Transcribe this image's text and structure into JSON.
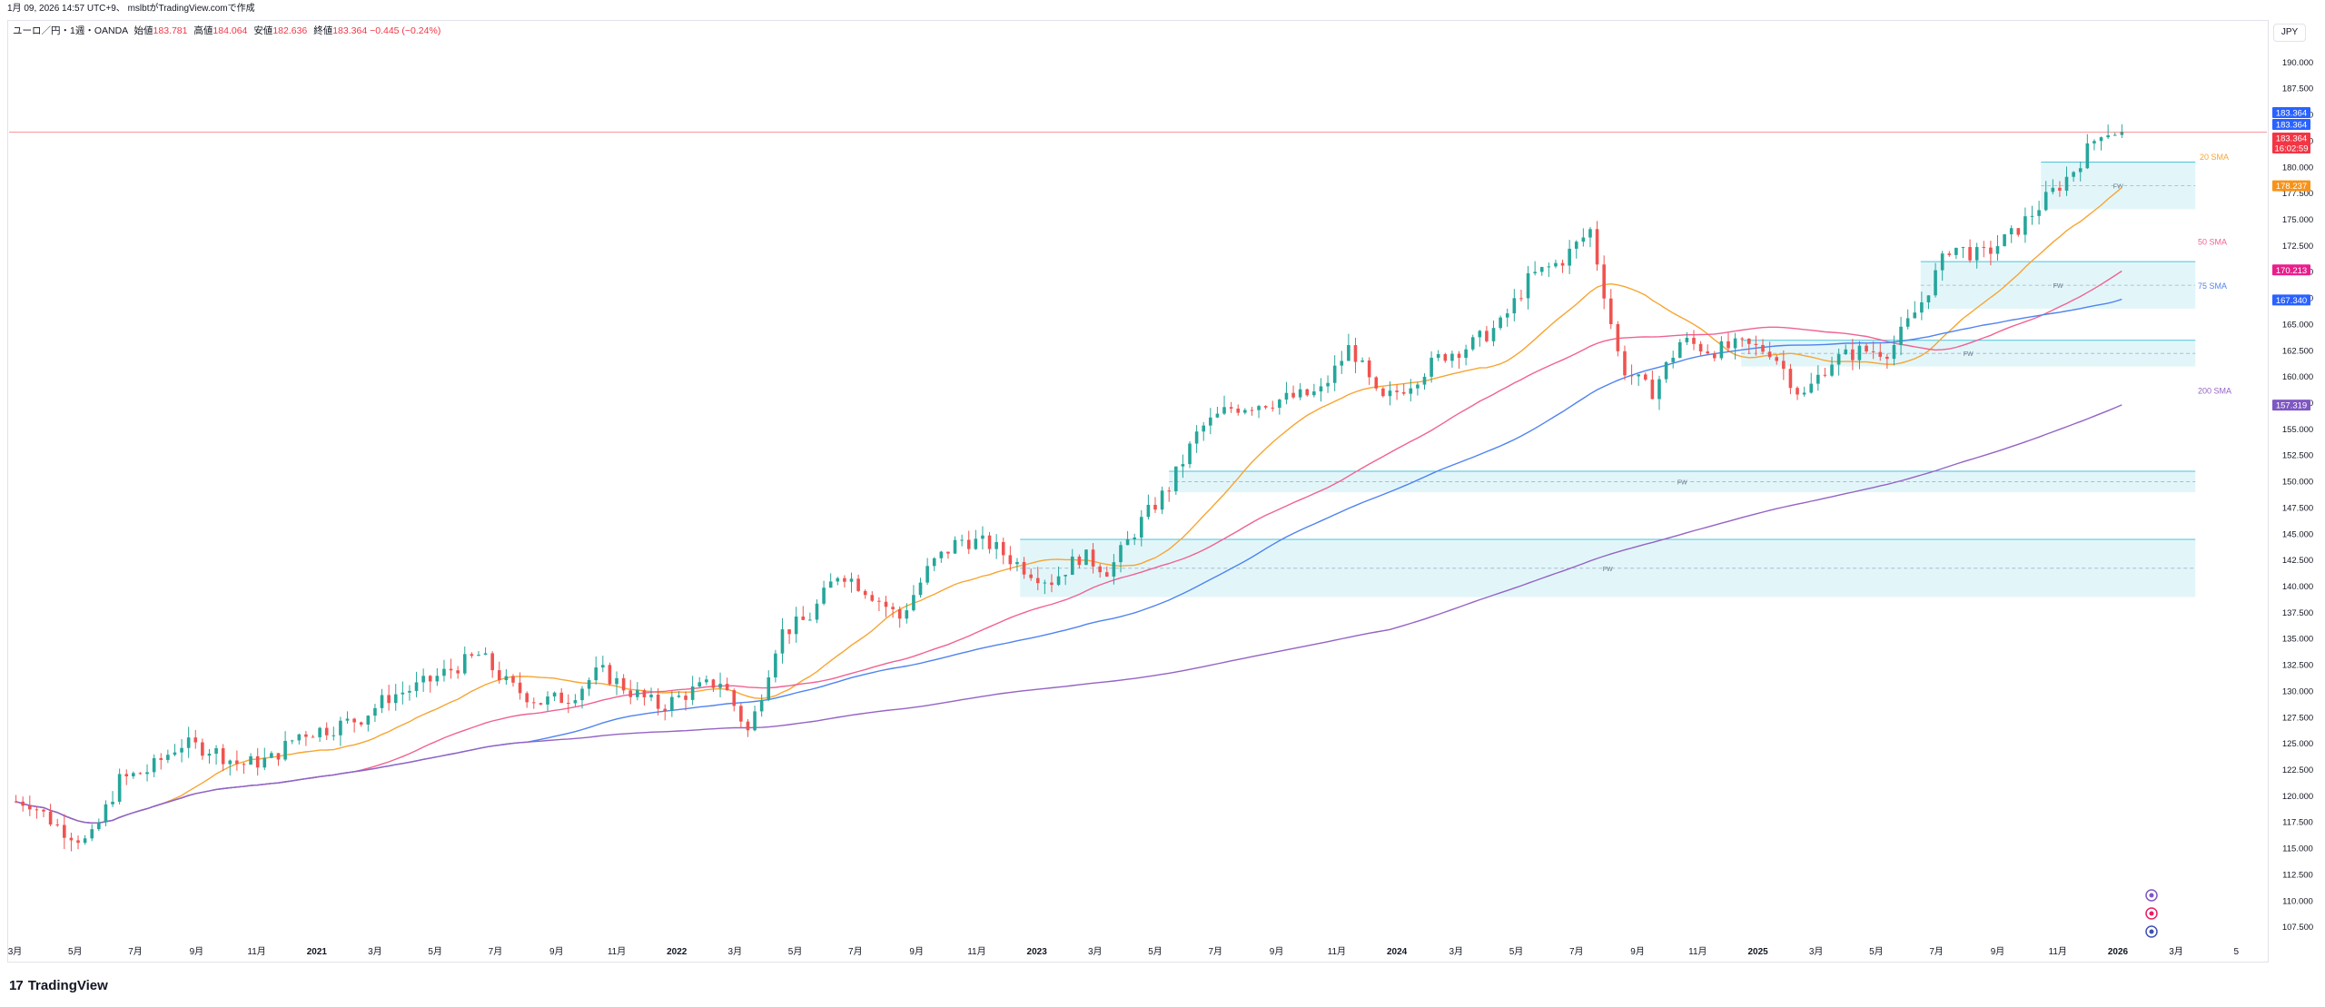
{
  "header": {
    "timestamp_line": "1月 09, 2026 14:57 UTC+9、 mslbtがTradingView.comで作成"
  },
  "legend": {
    "symbol": "ユーロ／円・1週・OANDA",
    "open_label": "始値",
    "open_value": "183.781",
    "high_label": "高値",
    "high_value": "184.064",
    "low_label": "安値",
    "low_value": "182.636",
    "close_label": "終値",
    "close_value": "183.364",
    "change": "−0.445 (−0.24%)"
  },
  "currency_button": "JPY",
  "footer": {
    "brand": "TradingView",
    "brand_mark": "17"
  },
  "colors": {
    "up": "#26a69a",
    "down": "#ef5350",
    "blue_candle": "#2962ff",
    "red_candle": "#c2185b",
    "sma20": "#f7a531",
    "sma50": "#f06292",
    "sma75": "#4f83ef",
    "sma200": "#9463c4",
    "fvg_fill": "#d2f1f8",
    "fvg_border": "#4fc3d9"
  },
  "price_badges": [
    {
      "text": "183.364",
      "color": "#2962ff"
    },
    {
      "text": "183.364",
      "color": "#2962ff"
    },
    {
      "text": "183.364",
      "color": "#f23645"
    },
    {
      "text": "16:02:59",
      "color": "#f23645"
    },
    {
      "text": "178.237",
      "color": "#f7931a"
    },
    {
      "text": "170.213",
      "color": "#e91e8c"
    },
    {
      "text": "167.340",
      "color": "#2962ff"
    },
    {
      "text": "157.319",
      "color": "#7e57c2"
    }
  ],
  "ma_labels": [
    {
      "text": "50 SMA",
      "color": "#f06292"
    },
    {
      "text": "75 SMA",
      "color": "#4f83ef"
    },
    {
      "text": "200 SMA",
      "color": "#9463c4"
    },
    {
      "text": "20 SMA",
      "color": "#f7a531"
    }
  ],
  "fvg_label": "FW",
  "side_icons": [
    "lightning-icon",
    "flag-icon",
    "record-icon"
  ],
  "chart_data": {
    "type": "candlestick",
    "title": "ユーロ／円・1週・OANDA",
    "y_axis": {
      "min": 105,
      "max": 192.5,
      "tick_step": 2.5,
      "position": "right"
    },
    "y_ticks": [
      "107.500",
      "110.000",
      "112.500",
      "115.000",
      "117.500",
      "120.000",
      "122.500",
      "125.000",
      "127.500",
      "130.000",
      "132.500",
      "135.000",
      "137.500",
      "140.000",
      "142.500",
      "145.000",
      "147.500",
      "150.000",
      "152.500",
      "155.000",
      "157.500",
      "160.000",
      "162.500",
      "165.000",
      "167.500",
      "170.000",
      "172.500",
      "175.000",
      "177.500",
      "180.000",
      "182.500",
      "185.000",
      "187.500",
      "190.000"
    ],
    "x_ticks": [
      "3月",
      "5月",
      "7月",
      "9月",
      "11月",
      "2021",
      "3月",
      "5月",
      "7月",
      "9月",
      "11月",
      "2022",
      "3月",
      "5月",
      "7月",
      "9月",
      "11月",
      "2023",
      "3月",
      "5月",
      "7月",
      "9月",
      "11月",
      "2024",
      "3月",
      "5月",
      "7月",
      "9月",
      "11月",
      "2025",
      "3月",
      "5月",
      "7月",
      "9月",
      "11月",
      "2026",
      "3月",
      "5"
    ],
    "anchors": [
      {
        "date": "2020-03",
        "price": 119.5
      },
      {
        "date": "2020-04",
        "price": 117.0
      },
      {
        "date": "2020-05",
        "price": 115.5
      },
      {
        "date": "2020-06",
        "price": 121.5
      },
      {
        "date": "2020-07",
        "price": 122.5
      },
      {
        "date": "2020-08",
        "price": 125.0
      },
      {
        "date": "2020-09",
        "price": 124.5
      },
      {
        "date": "2020-10",
        "price": 123.0
      },
      {
        "date": "2020-11",
        "price": 123.5
      },
      {
        "date": "2020-12",
        "price": 126.0
      },
      {
        "date": "2021-01",
        "price": 126.5
      },
      {
        "date": "2021-02",
        "price": 127.5
      },
      {
        "date": "2021-03",
        "price": 129.5
      },
      {
        "date": "2021-04",
        "price": 130.5
      },
      {
        "date": "2021-05",
        "price": 132.0
      },
      {
        "date": "2021-06",
        "price": 133.5
      },
      {
        "date": "2021-07",
        "price": 130.5
      },
      {
        "date": "2021-08",
        "price": 129.0
      },
      {
        "date": "2021-09",
        "price": 129.5
      },
      {
        "date": "2021-10",
        "price": 132.0
      },
      {
        "date": "2021-11",
        "price": 130.0
      },
      {
        "date": "2021-12",
        "price": 128.5
      },
      {
        "date": "2022-01",
        "price": 130.0
      },
      {
        "date": "2022-02",
        "price": 131.0
      },
      {
        "date": "2022-03",
        "price": 126.0
      },
      {
        "date": "2022-04",
        "price": 135.5
      },
      {
        "date": "2022-05",
        "price": 137.0
      },
      {
        "date": "2022-06",
        "price": 141.5
      },
      {
        "date": "2022-07",
        "price": 139.5
      },
      {
        "date": "2022-08",
        "price": 137.0
      },
      {
        "date": "2022-09",
        "price": 142.0
      },
      {
        "date": "2022-10",
        "price": 144.5
      },
      {
        "date": "2022-11",
        "price": 144.0
      },
      {
        "date": "2022-12",
        "price": 142.0
      },
      {
        "date": "2023-01",
        "price": 140.5
      },
      {
        "date": "2023-02",
        "price": 143.0
      },
      {
        "date": "2023-03",
        "price": 141.5
      },
      {
        "date": "2023-04",
        "price": 146.0
      },
      {
        "date": "2023-05",
        "price": 149.5
      },
      {
        "date": "2023-06",
        "price": 155.0
      },
      {
        "date": "2023-07",
        "price": 157.0
      },
      {
        "date": "2023-08",
        "price": 157.5
      },
      {
        "date": "2023-09",
        "price": 158.0
      },
      {
        "date": "2023-10",
        "price": 158.5
      },
      {
        "date": "2023-11",
        "price": 163.0
      },
      {
        "date": "2023-12",
        "price": 157.5
      },
      {
        "date": "2024-01",
        "price": 159.5
      },
      {
        "date": "2024-02",
        "price": 162.0
      },
      {
        "date": "2024-03",
        "price": 163.0
      },
      {
        "date": "2024-04",
        "price": 165.0
      },
      {
        "date": "2024-05",
        "price": 169.5
      },
      {
        "date": "2024-06",
        "price": 171.0
      },
      {
        "date": "2024-07",
        "price": 174.0
      },
      {
        "date": "2024-08",
        "price": 161.0
      },
      {
        "date": "2024-09",
        "price": 158.5
      },
      {
        "date": "2024-10",
        "price": 163.5
      },
      {
        "date": "2024-11",
        "price": 162.5
      },
      {
        "date": "2024-12",
        "price": 163.0
      },
      {
        "date": "2025-01",
        "price": 162.5
      },
      {
        "date": "2025-02",
        "price": 158.0
      },
      {
        "date": "2025-03",
        "price": 161.5
      },
      {
        "date": "2025-04",
        "price": 162.5
      },
      {
        "date": "2025-05",
        "price": 162.5
      },
      {
        "date": "2025-06",
        "price": 167.0
      },
      {
        "date": "2025-07",
        "price": 172.5
      },
      {
        "date": "2025-08",
        "price": 171.5
      },
      {
        "date": "2025-09",
        "price": 173.5
      },
      {
        "date": "2025-10",
        "price": 176.5
      },
      {
        "date": "2025-11",
        "price": 179.5
      },
      {
        "date": "2025-12",
        "price": 183.5
      },
      {
        "date": "2026-01",
        "price": 183.36
      }
    ],
    "current_price": 183.364,
    "series": [
      {
        "name": "20 SMA",
        "last": 178.237
      },
      {
        "name": "50 SMA",
        "last": 170.213
      },
      {
        "name": "75 SMA",
        "last": 167.34
      },
      {
        "name": "200 SMA",
        "last": 157.319
      }
    ],
    "fvg_zones": [
      {
        "from": "2023-05",
        "to": "2026-01",
        "low": 149.0,
        "high": 151.0
      },
      {
        "from": "2022-12",
        "to": "2026-01",
        "low": 139.0,
        "high": 144.5
      },
      {
        "from": "2024-12",
        "to": "2026-01",
        "low": 161.0,
        "high": 163.5
      },
      {
        "from": "2025-06",
        "to": "2026-01",
        "low": 166.5,
        "high": 171.0
      },
      {
        "from": "2025-10",
        "to": "2026-01",
        "low": 176.0,
        "high": 180.5
      }
    ],
    "grid": false
  }
}
